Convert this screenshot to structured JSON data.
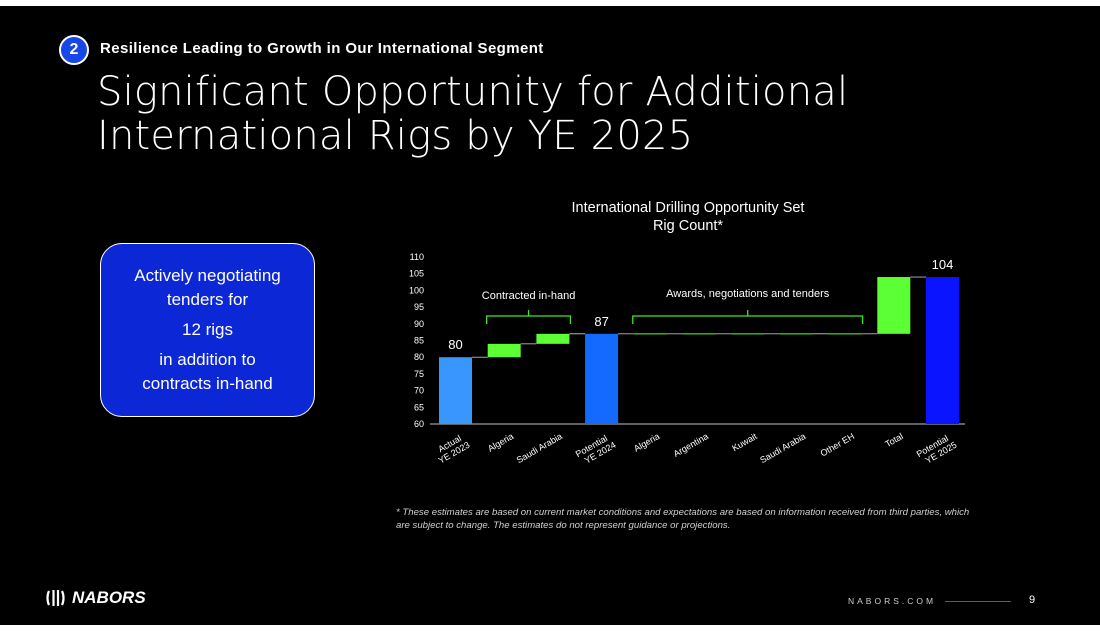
{
  "header": {
    "section_number": "2",
    "section_title": "Resilience Leading to Growth in Our International Segment",
    "title_line1": "Significant Opportunity for Additional",
    "title_line2": "International Rigs by YE 2025"
  },
  "callout": {
    "line1": "Actively negotiating",
    "line2": "tenders for",
    "line3": "12 rigs",
    "line4": "in addition to",
    "line5": "contracts in-hand"
  },
  "chart_data": {
    "type": "bar",
    "subtype": "waterfall",
    "title": "International Drilling Opportunity Set",
    "subtitle": "Rig Count*",
    "categories": [
      "Actual\nYE 2023",
      "Algeria",
      "Saudi Arabia",
      "Potential\nYE 2024",
      "Algeria",
      "Argentina",
      "Kuwait",
      "Saudi Arabia",
      "Other EH",
      "Total",
      "Potential\nYE 2025"
    ],
    "bars": [
      {
        "kind": "total",
        "from": 60,
        "to": 80,
        "label": "80"
      },
      {
        "kind": "increase",
        "from": 80,
        "to": 84
      },
      {
        "kind": "increase",
        "from": 84,
        "to": 87
      },
      {
        "kind": "total",
        "from": 60,
        "to": 87,
        "label": "87"
      },
      {
        "kind": "increase",
        "from": 87,
        "to": 87
      },
      {
        "kind": "increase",
        "from": 87,
        "to": 87
      },
      {
        "kind": "increase",
        "from": 87,
        "to": 87
      },
      {
        "kind": "increase",
        "from": 87,
        "to": 87
      },
      {
        "kind": "increase",
        "from": 87,
        "to": 87
      },
      {
        "kind": "increase",
        "from": 87,
        "to": 104
      },
      {
        "kind": "total",
        "from": 60,
        "to": 104,
        "label": "104"
      }
    ],
    "y_ticks": [
      60,
      65,
      70,
      75,
      80,
      85,
      90,
      95,
      100,
      105,
      110
    ],
    "ylim": [
      60,
      110
    ],
    "xlabel": "",
    "ylabel": "",
    "annotations": [
      {
        "text": "Contracted in-hand",
        "from_index": 1,
        "to_index": 2
      },
      {
        "text": "Awards, negotiations and tenders",
        "from_index": 4,
        "to_index": 8
      }
    ],
    "colors": {
      "actual": "#3a96ff",
      "potential_2024": "#1469ff",
      "potential_2025": "#0a14ff",
      "increase": "#5cff33",
      "bracket": "#3ee81e"
    }
  },
  "footnote": "* These estimates are based on current market conditions and expectations are based on information received from third parties, which are subject to change. The estimates do not represent guidance or projections.",
  "footer": {
    "logo_text": "NABORS",
    "website": "NABORS.COM",
    "page_number": "9"
  }
}
